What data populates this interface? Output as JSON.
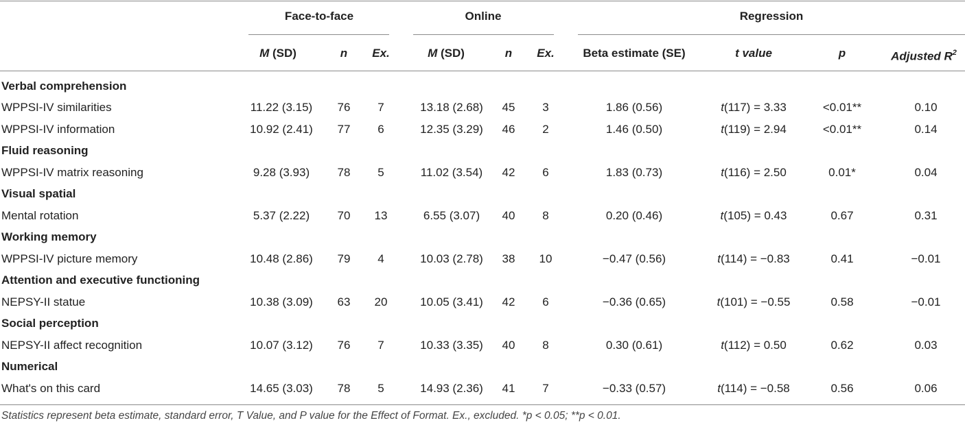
{
  "table": {
    "groups": [
      "Face-to-face",
      "Online",
      "Regression"
    ],
    "headers": {
      "ftf_m": "M",
      "ftf_sd": "(SD)",
      "ftf_n": "n",
      "ftf_ex": "Ex.",
      "on_m": "M",
      "on_sd": "(SD)",
      "on_n": "n",
      "on_ex": "Ex.",
      "beta": "Beta estimate (SE)",
      "t": "t value",
      "p": "p",
      "adj": "Adjusted R",
      "adj_sup": "2"
    },
    "sections": [
      {
        "category": "Verbal comprehension",
        "rows": [
          {
            "measure": "WPPSI-IV similarities",
            "ftf_msd": "11.22 (3.15)",
            "ftf_n": "76",
            "ftf_ex": "7",
            "on_msd": "13.18 (2.68)",
            "on_n": "45",
            "on_ex": "3",
            "beta": "1.86 (0.56)",
            "t_prefix": "t",
            "t_rest": "(117) = 3.33",
            "p": "<0.01**",
            "adj": "0.10"
          },
          {
            "measure": "WPPSI-IV information",
            "ftf_msd": "10.92 (2.41)",
            "ftf_n": "77",
            "ftf_ex": "6",
            "on_msd": "12.35 (3.29)",
            "on_n": "46",
            "on_ex": "2",
            "beta": "1.46 (0.50)",
            "t_prefix": "t",
            "t_rest": "(119) = 2.94",
            "p": "<0.01**",
            "adj": "0.14"
          }
        ]
      },
      {
        "category": "Fluid reasoning",
        "rows": [
          {
            "measure": "WPPSI-IV matrix reasoning",
            "ftf_msd": "9.28 (3.93)",
            "ftf_n": "78",
            "ftf_ex": "5",
            "on_msd": "11.02 (3.54)",
            "on_n": "42",
            "on_ex": "6",
            "beta": "1.83 (0.73)",
            "t_prefix": "t",
            "t_rest": "(116) = 2.50",
            "p": "0.01*",
            "adj": "0.04"
          }
        ]
      },
      {
        "category": "Visual spatial",
        "rows": [
          {
            "measure": "Mental rotation",
            "ftf_msd": "5.37 (2.22)",
            "ftf_n": "70",
            "ftf_ex": "13",
            "on_msd": "6.55 (3.07)",
            "on_n": "40",
            "on_ex": "8",
            "beta": "0.20 (0.46)",
            "t_prefix": "t",
            "t_rest": "(105) = 0.43",
            "p": "0.67",
            "adj": "0.31"
          }
        ]
      },
      {
        "category": "Working memory",
        "rows": [
          {
            "measure": "WPPSI-IV picture memory",
            "ftf_msd": "10.48 (2.86)",
            "ftf_n": "79",
            "ftf_ex": "4",
            "on_msd": "10.03 (2.78)",
            "on_n": "38",
            "on_ex": "10",
            "beta": "−0.47 (0.56)",
            "t_prefix": "t",
            "t_rest": "(114) = −0.83",
            "p": "0.41",
            "adj": "−0.01"
          }
        ]
      },
      {
        "category": "Attention and executive functioning",
        "rows": [
          {
            "measure": "NEPSY-II statue",
            "ftf_msd": "10.38 (3.09)",
            "ftf_n": "63",
            "ftf_ex": "20",
            "on_msd": "10.05 (3.41)",
            "on_n": "42",
            "on_ex": "6",
            "beta": "−0.36 (0.65)",
            "t_prefix": "t",
            "t_rest": "(101) = −0.55",
            "p": "0.58",
            "adj": "−0.01"
          }
        ]
      },
      {
        "category": "Social perception",
        "rows": [
          {
            "measure": "NEPSY-II affect recognition",
            "ftf_msd": "10.07 (3.12)",
            "ftf_n": "76",
            "ftf_ex": "7",
            "on_msd": "10.33 (3.35)",
            "on_n": "40",
            "on_ex": "8",
            "beta": "0.30 (0.61)",
            "t_prefix": "t",
            "t_rest": "(112) = 0.50",
            "p": "0.62",
            "adj": "0.03"
          }
        ]
      },
      {
        "category": "Numerical",
        "rows": [
          {
            "measure": "What's on this card",
            "ftf_msd": "14.65 (3.03)",
            "ftf_n": "78",
            "ftf_ex": "5",
            "on_msd": "14.93 (2.36)",
            "on_n": "41",
            "on_ex": "7",
            "beta": "−0.33 (0.57)",
            "t_prefix": "t",
            "t_rest": "(114) = −0.58",
            "p": "0.56",
            "adj": "0.06"
          }
        ]
      }
    ],
    "footnote": "Statistics represent beta estimate, standard error, T Value, and P value for the Effect of Format. Ex., excluded. *p < 0.05; **p < 0.01."
  }
}
